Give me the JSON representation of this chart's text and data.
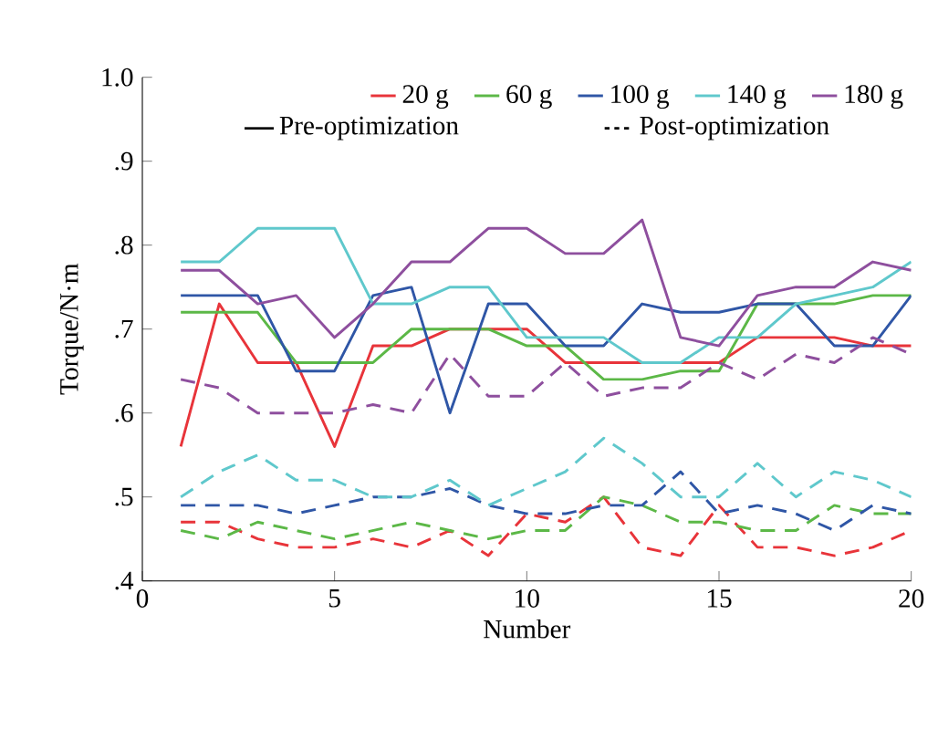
{
  "chart_data": {
    "type": "line",
    "xlabel": "Number",
    "ylabel": "Torque/N·m",
    "x": [
      1,
      2,
      3,
      4,
      5,
      6,
      7,
      8,
      9,
      10,
      11,
      12,
      13,
      14,
      15,
      16,
      17,
      18,
      19,
      20
    ],
    "xlim": [
      0,
      20
    ],
    "xticks": [
      0,
      5,
      10,
      15,
      20
    ],
    "ylim": [
      0.4,
      1.0
    ],
    "yticks": [
      {
        "value": 0.4,
        "label": ".4"
      },
      {
        "value": 0.5,
        "label": ".5"
      },
      {
        "value": 0.6,
        "label": ".6"
      },
      {
        "value": 0.7,
        "label": ".7"
      },
      {
        "value": 0.8,
        "label": ".8"
      },
      {
        "value": 0.9,
        "label": ".9"
      },
      {
        "value": 1.0,
        "label": "1.0"
      }
    ],
    "grid": false,
    "legend": "top right",
    "marker": "none",
    "annotations": [
      "Pre-optimization",
      "Post-optimization"
    ],
    "series": [
      {
        "name": "20 g",
        "color": "#e8343a",
        "line_style": "solid",
        "values": [
          0.56,
          0.73,
          0.66,
          0.66,
          0.56,
          0.68,
          0.68,
          0.7,
          0.7,
          0.7,
          0.66,
          0.66,
          0.66,
          0.66,
          0.66,
          0.69,
          0.69,
          0.69,
          0.68,
          0.68
        ]
      },
      {
        "name": "60 g",
        "color": "#5cb847",
        "line_style": "solid",
        "values": [
          0.72,
          0.72,
          0.72,
          0.66,
          0.66,
          0.66,
          0.7,
          0.7,
          0.7,
          0.68,
          0.68,
          0.64,
          0.64,
          0.65,
          0.65,
          0.73,
          0.73,
          0.73,
          0.74,
          0.74
        ]
      },
      {
        "name": "100 g",
        "color": "#2f56a6",
        "line_style": "solid",
        "values": [
          0.74,
          0.74,
          0.74,
          0.65,
          0.65,
          0.74,
          0.75,
          0.6,
          0.73,
          0.73,
          0.68,
          0.68,
          0.73,
          0.72,
          0.72,
          0.73,
          0.73,
          0.68,
          0.68,
          0.74
        ]
      },
      {
        "name": "140 g",
        "color": "#5fc8cc",
        "line_style": "solid",
        "values": [
          0.78,
          0.78,
          0.82,
          0.82,
          0.82,
          0.73,
          0.73,
          0.75,
          0.75,
          0.69,
          0.69,
          0.69,
          0.66,
          0.66,
          0.69,
          0.69,
          0.73,
          0.74,
          0.75,
          0.78
        ]
      },
      {
        "name": "180 g",
        "color": "#8e4f9e",
        "line_style": "solid",
        "values": [
          0.77,
          0.77,
          0.73,
          0.74,
          0.69,
          0.73,
          0.78,
          0.78,
          0.82,
          0.82,
          0.79,
          0.79,
          0.83,
          0.69,
          0.68,
          0.74,
          0.75,
          0.75,
          0.78,
          0.77
        ]
      },
      {
        "color": "#e8343a",
        "line_style": "dashed",
        "values": [
          0.47,
          0.47,
          0.45,
          0.44,
          0.44,
          0.45,
          0.44,
          0.46,
          0.43,
          0.48,
          0.47,
          0.5,
          0.44,
          0.43,
          0.49,
          0.44,
          0.44,
          0.43,
          0.44,
          0.46
        ]
      },
      {
        "color": "#5cb847",
        "line_style": "dashed",
        "values": [
          0.46,
          0.45,
          0.47,
          0.46,
          0.45,
          0.46,
          0.47,
          0.46,
          0.45,
          0.46,
          0.46,
          0.5,
          0.49,
          0.47,
          0.47,
          0.46,
          0.46,
          0.49,
          0.48,
          0.48
        ]
      },
      {
        "color": "#2f56a6",
        "line_style": "dashed",
        "values": [
          0.49,
          0.49,
          0.49,
          0.48,
          0.49,
          0.5,
          0.5,
          0.51,
          0.49,
          0.48,
          0.48,
          0.49,
          0.49,
          0.53,
          0.48,
          0.49,
          0.48,
          0.46,
          0.49,
          0.48
        ]
      },
      {
        "color": "#5fc8cc",
        "line_style": "dashed",
        "values": [
          0.5,
          0.53,
          0.55,
          0.52,
          0.52,
          0.5,
          0.5,
          0.52,
          0.49,
          0.51,
          0.53,
          0.57,
          0.54,
          0.5,
          0.5,
          0.54,
          0.5,
          0.53,
          0.52,
          0.5
        ]
      },
      {
        "color": "#8e4f9e",
        "line_style": "dashed",
        "values": [
          0.64,
          0.63,
          0.6,
          0.6,
          0.6,
          0.61,
          0.6,
          0.67,
          0.62,
          0.62,
          0.66,
          0.62,
          0.63,
          0.63,
          0.66,
          0.64,
          0.67,
          0.66,
          0.69,
          0.67
        ]
      }
    ]
  }
}
